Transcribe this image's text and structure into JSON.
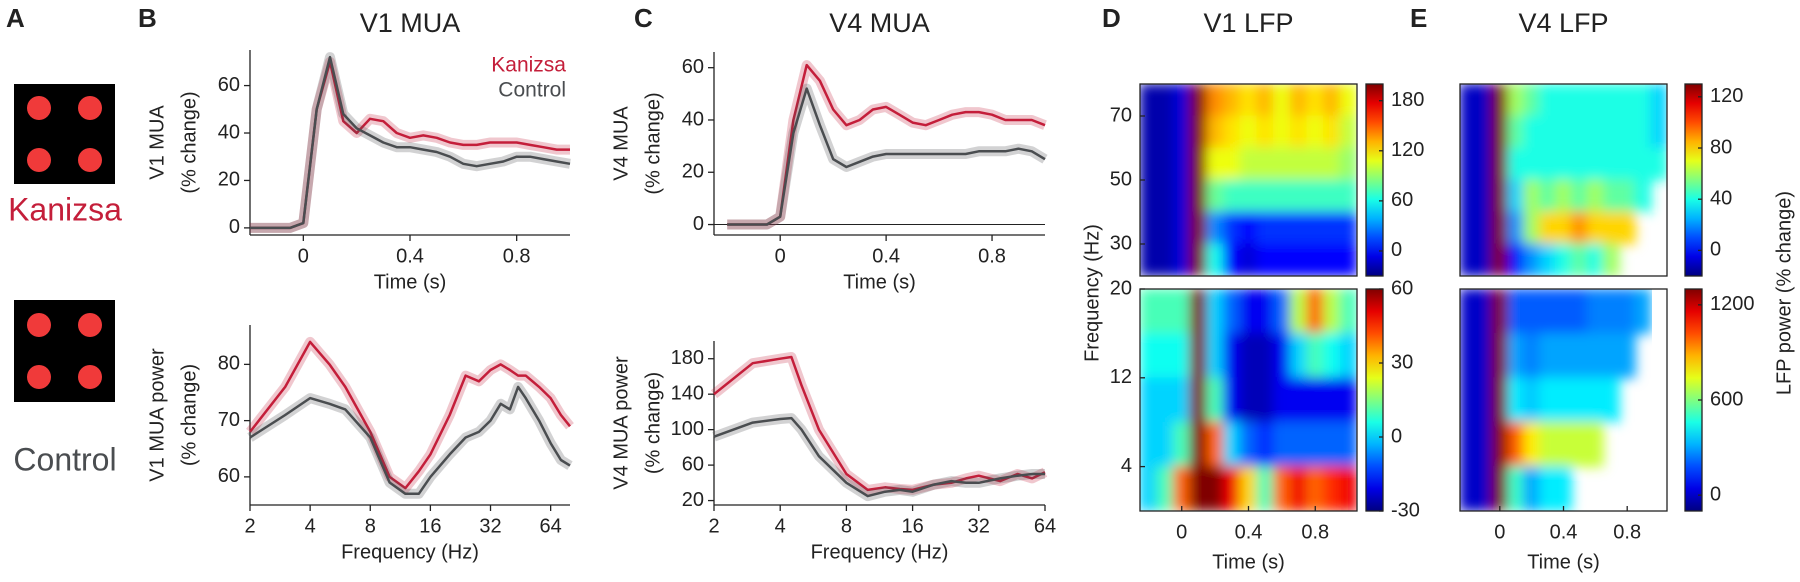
{
  "panel_a": {
    "label": "A",
    "conditions": [
      "Kanizsa",
      "Control"
    ]
  },
  "chart_data": [
    {
      "type": "line",
      "panel": "B",
      "title": "V1 MUA",
      "ylabel": [
        "V1 MUA",
        "(% change)"
      ],
      "xlabel": "Time (s)",
      "x": [
        -0.2,
        -0.15,
        -0.1,
        -0.05,
        0,
        0.05,
        0.1,
        0.15,
        0.2,
        0.25,
        0.3,
        0.35,
        0.4,
        0.45,
        0.5,
        0.55,
        0.6,
        0.65,
        0.7,
        0.75,
        0.8,
        0.85,
        0.9,
        0.95,
        1.0
      ],
      "xlim": [
        -0.2,
        1.0
      ],
      "xticks": [
        0,
        0.4,
        0.8
      ],
      "ylim": [
        -3,
        75
      ],
      "yticks": [
        0,
        20,
        40,
        60
      ],
      "legend": "upper right",
      "series": [
        {
          "name": "Kanizsa",
          "color": "#c41e3a",
          "values": [
            0,
            0,
            0,
            0,
            2,
            50,
            70,
            45,
            40,
            46,
            45,
            40,
            38,
            39,
            38,
            36,
            35,
            35,
            36,
            36,
            36,
            35,
            34,
            33,
            33
          ]
        },
        {
          "name": "Control",
          "color": "#4a4d50",
          "values": [
            0,
            0,
            0,
            0,
            2,
            50,
            72,
            48,
            42,
            39,
            36,
            34,
            34,
            33,
            32,
            30,
            27,
            26,
            27,
            28,
            30,
            30,
            29,
            28,
            27
          ]
        }
      ]
    },
    {
      "type": "line",
      "ylabel": [
        "V1 MUA power",
        "(% change)"
      ],
      "xlabel": "Frequency (Hz)",
      "xscale": "log",
      "x": [
        2,
        3,
        4,
        5,
        6,
        8,
        10,
        12,
        14,
        16,
        20,
        24,
        28,
        32,
        36,
        40,
        44,
        48,
        56,
        64,
        72,
        80
      ],
      "xlim": [
        2,
        80
      ],
      "xticks": [
        2,
        4,
        8,
        16,
        32,
        64
      ],
      "ylim": [
        55,
        87
      ],
      "yticks": [
        60,
        70,
        80
      ],
      "series": [
        {
          "name": "Kanizsa",
          "color": "#c41e3a",
          "values": [
            68,
            76,
            84,
            80,
            76,
            68,
            60,
            58,
            61,
            64,
            71,
            78,
            77,
            79,
            80,
            79,
            78,
            78,
            76,
            74,
            71,
            69
          ]
        },
        {
          "name": "Control",
          "color": "#4a4d50",
          "values": [
            67,
            71,
            74,
            73,
            72,
            67,
            59,
            57,
            57,
            60,
            64,
            67,
            68,
            70,
            73,
            72,
            76,
            74,
            70,
            66,
            63,
            62
          ]
        }
      ]
    },
    {
      "type": "line",
      "panel": "C",
      "title": "V4 MUA",
      "ylabel": [
        "V4 MUA",
        "(% change)"
      ],
      "xlabel": "Time (s)",
      "zero_line": true,
      "x": [
        -0.2,
        -0.15,
        -0.1,
        -0.05,
        0,
        0.05,
        0.1,
        0.15,
        0.2,
        0.25,
        0.3,
        0.35,
        0.4,
        0.45,
        0.5,
        0.55,
        0.6,
        0.65,
        0.7,
        0.75,
        0.8,
        0.85,
        0.9,
        0.95,
        1.0
      ],
      "xlim": [
        -0.25,
        1.0
      ],
      "xticks": [
        0,
        0.4,
        0.8
      ],
      "ylim": [
        -4,
        66
      ],
      "yticks": [
        0,
        20,
        40,
        60
      ],
      "series": [
        {
          "name": "Kanizsa",
          "color": "#c41e3a",
          "values": [
            0,
            0,
            0,
            0,
            3,
            40,
            61,
            55,
            44,
            38,
            40,
            44,
            45,
            42,
            39,
            38,
            40,
            42,
            43,
            43,
            42,
            40,
            40,
            40,
            38
          ]
        },
        {
          "name": "Control",
          "color": "#4a4d50",
          "values": [
            0,
            0,
            0,
            0,
            3,
            35,
            52,
            38,
            25,
            22,
            24,
            26,
            27,
            27,
            27,
            27,
            27,
            27,
            27,
            28,
            28,
            28,
            29,
            28,
            25
          ]
        }
      ]
    },
    {
      "type": "line",
      "ylabel": [
        "V4 MUA power",
        "(% change)"
      ],
      "xlabel": "Frequency (Hz)",
      "xscale": "log",
      "x": [
        2,
        3,
        4,
        4.5,
        5,
        6,
        8,
        10,
        12,
        14,
        16,
        20,
        24,
        28,
        32,
        40,
        48,
        56,
        64
      ],
      "xlim": [
        2,
        64
      ],
      "xticks": [
        2,
        4,
        8,
        16,
        32,
        64
      ],
      "ylim": [
        15,
        200
      ],
      "yticks": [
        20,
        60,
        100,
        140,
        180
      ],
      "series": [
        {
          "name": "Kanizsa",
          "color": "#c41e3a",
          "values": [
            140,
            175,
            180,
            182,
            150,
            100,
            50,
            32,
            35,
            33,
            32,
            38,
            40,
            45,
            48,
            42,
            50,
            45,
            52
          ]
        },
        {
          "name": "Control",
          "color": "#4a4d50",
          "values": [
            92,
            108,
            112,
            113,
            100,
            70,
            40,
            25,
            30,
            32,
            30,
            38,
            42,
            40,
            40,
            45,
            48,
            50,
            50
          ]
        }
      ]
    },
    {
      "type": "heatmap",
      "panel": "D",
      "title": "V1 LFP",
      "ylabel": "Frequency (Hz)",
      "x": [
        -0.2,
        -0.1,
        0,
        0.1,
        0.2,
        0.3,
        0.4,
        0.5,
        0.6,
        0.7,
        0.8,
        0.9,
        1.0
      ],
      "y": [
        75,
        65,
        55,
        45,
        35,
        25
      ],
      "xlim": [
        -0.25,
        1.05
      ],
      "ylim": [
        20,
        80
      ],
      "yticks": [
        30,
        50,
        70
      ],
      "clim": [
        -30,
        200
      ],
      "cticks": [
        0,
        60,
        120,
        180
      ],
      "z": [
        [
          -20,
          -20,
          -10,
          200,
          140,
          130,
          120,
          130,
          110,
          130,
          120,
          130,
          110
        ],
        [
          -20,
          -20,
          -10,
          200,
          130,
          120,
          110,
          120,
          110,
          120,
          110,
          120,
          100
        ],
        [
          -20,
          -20,
          -10,
          200,
          110,
          110,
          100,
          100,
          100,
          100,
          100,
          100,
          90
        ],
        [
          -20,
          -20,
          -10,
          200,
          80,
          70,
          70,
          70,
          70,
          70,
          70,
          70,
          70
        ],
        [
          -20,
          -20,
          -10,
          200,
          30,
          10,
          0,
          10,
          10,
          10,
          10,
          10,
          10
        ],
        [
          -20,
          -20,
          -10,
          200,
          60,
          0,
          -10,
          0,
          0,
          0,
          0,
          0,
          0
        ]
      ]
    },
    {
      "type": "heatmap",
      "xlabel": "Time (s)",
      "x": [
        -0.2,
        -0.1,
        0,
        0.1,
        0.2,
        0.3,
        0.4,
        0.5,
        0.6,
        0.7,
        0.8,
        0.9,
        1.0
      ],
      "y": [
        18,
        14,
        10,
        6,
        2
      ],
      "xlim": [
        -0.25,
        1.05
      ],
      "xticks": [
        0,
        0.4,
        0.8
      ],
      "ylim": [
        0,
        20
      ],
      "yticks": [
        4,
        12,
        20
      ],
      "clim": [
        -30,
        60
      ],
      "cticks": [
        -30,
        0,
        30,
        60
      ],
      "z": [
        [
          10,
          10,
          10,
          60,
          0,
          -10,
          -20,
          -20,
          -10,
          20,
          40,
          20,
          10
        ],
        [
          5,
          5,
          5,
          60,
          0,
          -20,
          -25,
          -25,
          -20,
          0,
          10,
          5,
          0
        ],
        [
          0,
          0,
          0,
          60,
          10,
          -20,
          -25,
          -25,
          -20,
          -20,
          -20,
          -20,
          -20
        ],
        [
          0,
          0,
          10,
          60,
          40,
          0,
          -10,
          -15,
          -10,
          -10,
          -10,
          -10,
          -10
        ],
        [
          0,
          10,
          40,
          60,
          60,
          50,
          30,
          10,
          40,
          50,
          40,
          45,
          50
        ]
      ]
    },
    {
      "type": "heatmap",
      "panel": "E",
      "title": "V4 LFP",
      "colorbar_label": "LFP power (% change)",
      "x": [
        -0.2,
        -0.1,
        0,
        0.1,
        0.2,
        0.3,
        0.4,
        0.5,
        0.6,
        0.7,
        0.8,
        0.9,
        1.0
      ],
      "y": [
        75,
        65,
        55,
        45,
        35,
        25
      ],
      "xlim": [
        -0.25,
        1.05
      ],
      "ylim": [
        20,
        80
      ],
      "clim": [
        -20,
        130
      ],
      "cticks": [
        0,
        40,
        80,
        120
      ],
      "z": [
        [
          -10,
          -10,
          130,
          60,
          50,
          40,
          40,
          40,
          40,
          40,
          40,
          40,
          30
        ],
        [
          -10,
          -10,
          130,
          50,
          40,
          40,
          40,
          40,
          40,
          40,
          40,
          40,
          30
        ],
        [
          -10,
          -10,
          130,
          40,
          40,
          40,
          40,
          40,
          40,
          40,
          40,
          40,
          40
        ],
        [
          -10,
          -10,
          130,
          30,
          60,
          50,
          60,
          50,
          60,
          50,
          50,
          40,
          null
        ],
        [
          -10,
          -10,
          130,
          20,
          60,
          80,
          80,
          90,
          80,
          80,
          80,
          null,
          null
        ],
        [
          -10,
          -10,
          130,
          0,
          20,
          30,
          40,
          50,
          40,
          60,
          null,
          null,
          null
        ]
      ]
    },
    {
      "type": "heatmap",
      "xlabel": "Time (s)",
      "x": [
        -0.2,
        -0.1,
        0,
        0.1,
        0.2,
        0.3,
        0.4,
        0.5,
        0.6,
        0.7,
        0.8,
        0.9,
        1.0
      ],
      "y": [
        18,
        14,
        10,
        6,
        2
      ],
      "xlim": [
        -0.25,
        1.05
      ],
      "xticks": [
        0,
        0.4,
        0.8
      ],
      "ylim": [
        0,
        20
      ],
      "clim": [
        -100,
        1300
      ],
      "cticks": [
        0,
        600,
        1200
      ],
      "z": [
        [
          0,
          0,
          1300,
          200,
          200,
          200,
          200,
          200,
          250,
          250,
          250,
          300,
          null
        ],
        [
          0,
          0,
          1300,
          300,
          250,
          300,
          300,
          300,
          300,
          300,
          300,
          null,
          null
        ],
        [
          0,
          0,
          1300,
          400,
          350,
          400,
          400,
          400,
          400,
          400,
          null,
          null,
          null
        ],
        [
          0,
          0,
          1300,
          1000,
          800,
          700,
          700,
          700,
          700,
          null,
          null,
          null,
          null
        ],
        [
          0,
          0,
          1300,
          500,
          300,
          400,
          400,
          null,
          null,
          null,
          null,
          null,
          null
        ]
      ]
    }
  ]
}
